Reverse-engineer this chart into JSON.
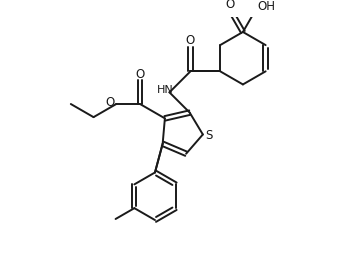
{
  "bg_color": "#ffffff",
  "line_color": "#1a1a1a",
  "line_width": 1.4,
  "figsize": [
    3.59,
    2.62
  ],
  "dpi": 100,
  "xlim": [
    0,
    9.5
  ],
  "ylim": [
    0,
    7.0
  ]
}
